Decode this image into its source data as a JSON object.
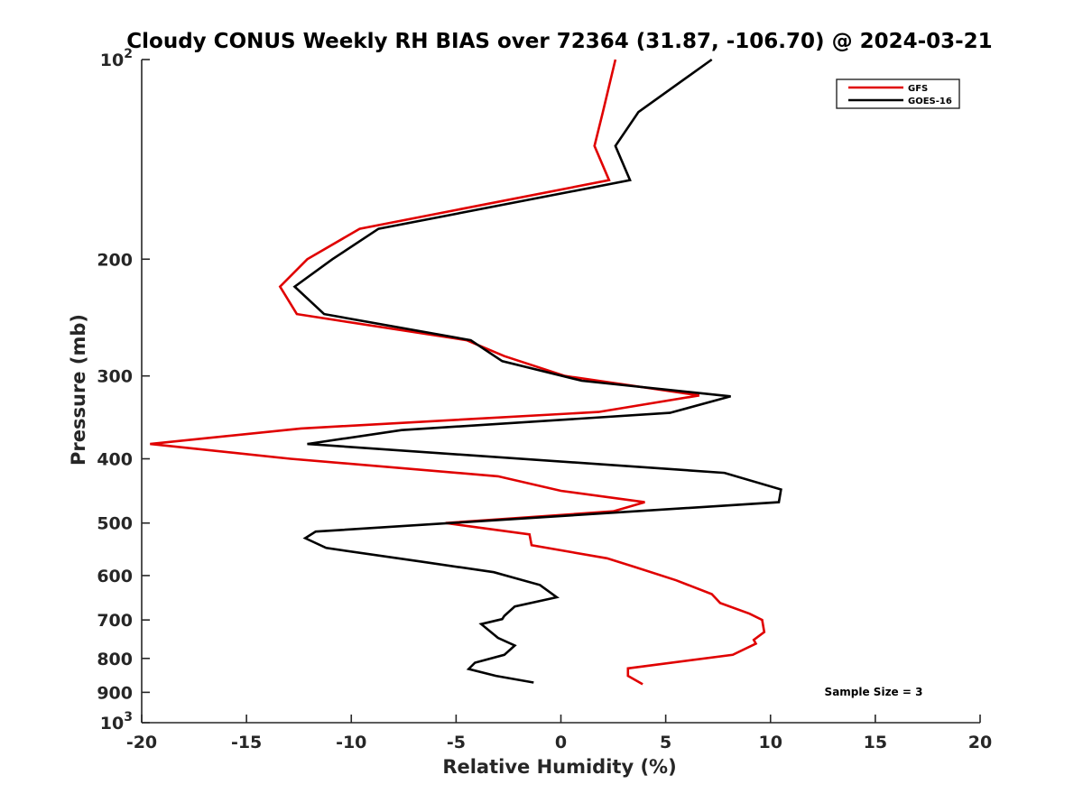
{
  "chart_data": {
    "type": "line",
    "title": "Cloudy CONUS Weekly RH BIAS over 72364 (31.87, -106.70) @ 2024-03-21",
    "xlabel": "Relative Humidity (%)",
    "ylabel": "Pressure (mb)",
    "xlim": [
      -20,
      20
    ],
    "ylim": [
      100,
      1000
    ],
    "y_scale": "log",
    "y_reversed": true,
    "grid": false,
    "x_ticks": [
      -20,
      -15,
      -10,
      -5,
      0,
      5,
      10,
      15,
      20
    ],
    "x_tick_labels": [
      "-20",
      "-15",
      "-10",
      "-5",
      "0",
      "5",
      "10",
      "15",
      "20"
    ],
    "y_ticks": [
      {
        "value": 100,
        "label": "10",
        "exp": "2"
      },
      {
        "value": 200,
        "label": "200"
      },
      {
        "value": 300,
        "label": "300"
      },
      {
        "value": 400,
        "label": "400"
      },
      {
        "value": 500,
        "label": "500"
      },
      {
        "value": 600,
        "label": "600"
      },
      {
        "value": 700,
        "label": "700"
      },
      {
        "value": 800,
        "label": "800"
      },
      {
        "value": 900,
        "label": "900"
      },
      {
        "value": 1000,
        "label": "10",
        "exp": "3"
      }
    ],
    "legend": {
      "position": "top-right"
    },
    "annotation": "Sample Size = 3",
    "series": [
      {
        "name": "GFS",
        "color": "#e00000",
        "points": [
          [
            2.6,
            100
          ],
          [
            2.0,
            120
          ],
          [
            1.6,
            135
          ],
          [
            2.3,
            152
          ],
          [
            -9.6,
            180
          ],
          [
            -12.1,
            200
          ],
          [
            -13.4,
            220
          ],
          [
            -12.6,
            242
          ],
          [
            -4.5,
            265
          ],
          [
            -2.7,
            280
          ],
          [
            0.2,
            300
          ],
          [
            6.6,
            321
          ],
          [
            1.8,
            340
          ],
          [
            -12.4,
            360
          ],
          [
            -19.6,
            380
          ],
          [
            -12.9,
            400
          ],
          [
            -3.0,
            425
          ],
          [
            0.0,
            447
          ],
          [
            4.0,
            465
          ],
          [
            2.5,
            480
          ],
          [
            -5.5,
            500
          ],
          [
            -1.5,
            520
          ],
          [
            -1.4,
            540
          ],
          [
            2.2,
            565
          ],
          [
            3.5,
            582
          ],
          [
            5.5,
            610
          ],
          [
            7.2,
            640
          ],
          [
            7.6,
            660
          ],
          [
            9.0,
            685
          ],
          [
            9.6,
            700
          ],
          [
            9.7,
            730
          ],
          [
            9.2,
            750
          ],
          [
            9.3,
            760
          ],
          [
            8.2,
            790
          ],
          [
            3.2,
            828
          ],
          [
            3.2,
            850
          ],
          [
            3.9,
            875
          ]
        ]
      },
      {
        "name": "GOES-16",
        "color": "#000000",
        "points": [
          [
            7.2,
            100
          ],
          [
            3.7,
            120
          ],
          [
            2.6,
            135
          ],
          [
            3.3,
            152
          ],
          [
            -8.7,
            180
          ],
          [
            -10.9,
            200
          ],
          [
            -12.7,
            220
          ],
          [
            -11.3,
            242
          ],
          [
            -4.3,
            265
          ],
          [
            -2.8,
            285
          ],
          [
            1.0,
            305
          ],
          [
            8.1,
            322
          ],
          [
            5.2,
            341
          ],
          [
            -7.6,
            362
          ],
          [
            -12.1,
            380
          ],
          [
            7.8,
            420
          ],
          [
            10.5,
            445
          ],
          [
            10.4,
            465
          ],
          [
            -11.7,
            515
          ],
          [
            -12.2,
            527
          ],
          [
            -11.2,
            545
          ],
          [
            -6.6,
            572
          ],
          [
            -3.2,
            593
          ],
          [
            -1.0,
            620
          ],
          [
            -0.2,
            647
          ],
          [
            -2.2,
            668
          ],
          [
            -2.7,
            690
          ],
          [
            -2.8,
            698
          ],
          [
            -3.8,
            710
          ],
          [
            -3.0,
            745
          ],
          [
            -2.2,
            765
          ],
          [
            -2.7,
            790
          ],
          [
            -4.1,
            812
          ],
          [
            -4.4,
            830
          ],
          [
            -3.1,
            850
          ],
          [
            -1.3,
            870
          ]
        ]
      }
    ]
  }
}
